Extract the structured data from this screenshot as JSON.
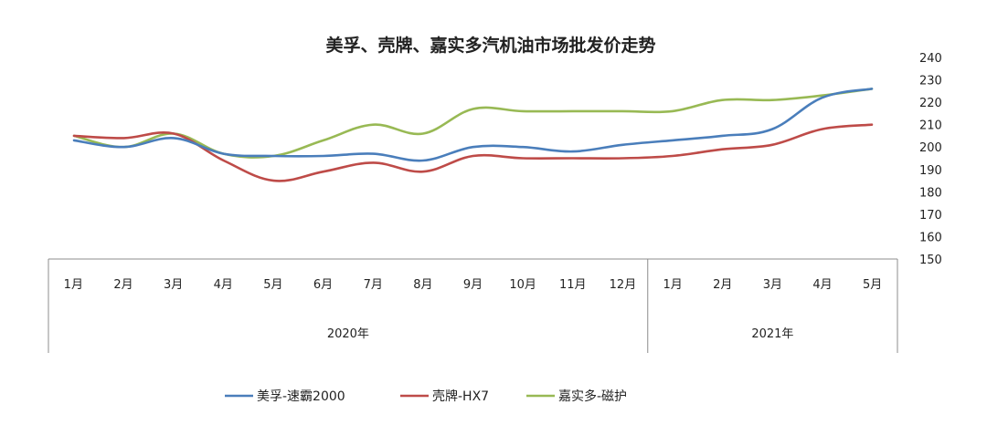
{
  "chart_data": {
    "type": "line",
    "title": "美孚、壳牌、嘉实多汽机油市场批发价走势",
    "categories": [
      "1月",
      "2月",
      "3月",
      "4月",
      "5月",
      "6月",
      "7月",
      "8月",
      "9月",
      "10月",
      "11月",
      "12月",
      "1月",
      "2月",
      "3月",
      "4月",
      "5月"
    ],
    "year_groups": [
      {
        "label": "2020年",
        "months": 12
      },
      {
        "label": "2021年",
        "months": 5
      }
    ],
    "yticks": [
      240,
      230,
      220,
      210,
      200,
      190,
      180,
      170,
      160,
      150
    ],
    "ylim": [
      150,
      240
    ],
    "y_axis_position": "right",
    "grid": false,
    "legend_position": "bottom",
    "series": [
      {
        "name": "美孚-速霸2000",
        "color": "#4a7ebb",
        "values": [
          203,
          200,
          204,
          197,
          196,
          196,
          197,
          194,
          200,
          200,
          198,
          201,
          203,
          205,
          208,
          222,
          226
        ]
      },
      {
        "name": "壳牌-HX7",
        "color": "#be4b48",
        "values": [
          205,
          204,
          206,
          194,
          185,
          189,
          193,
          189,
          196,
          195,
          195,
          195,
          196,
          199,
          201,
          208,
          210
        ]
      },
      {
        "name": "嘉实多-磁护",
        "color": "#98b954",
        "values": [
          205,
          200,
          206,
          197,
          196,
          203,
          210,
          206,
          217,
          216,
          216,
          216,
          216,
          221,
          221,
          223,
          226
        ]
      }
    ]
  }
}
